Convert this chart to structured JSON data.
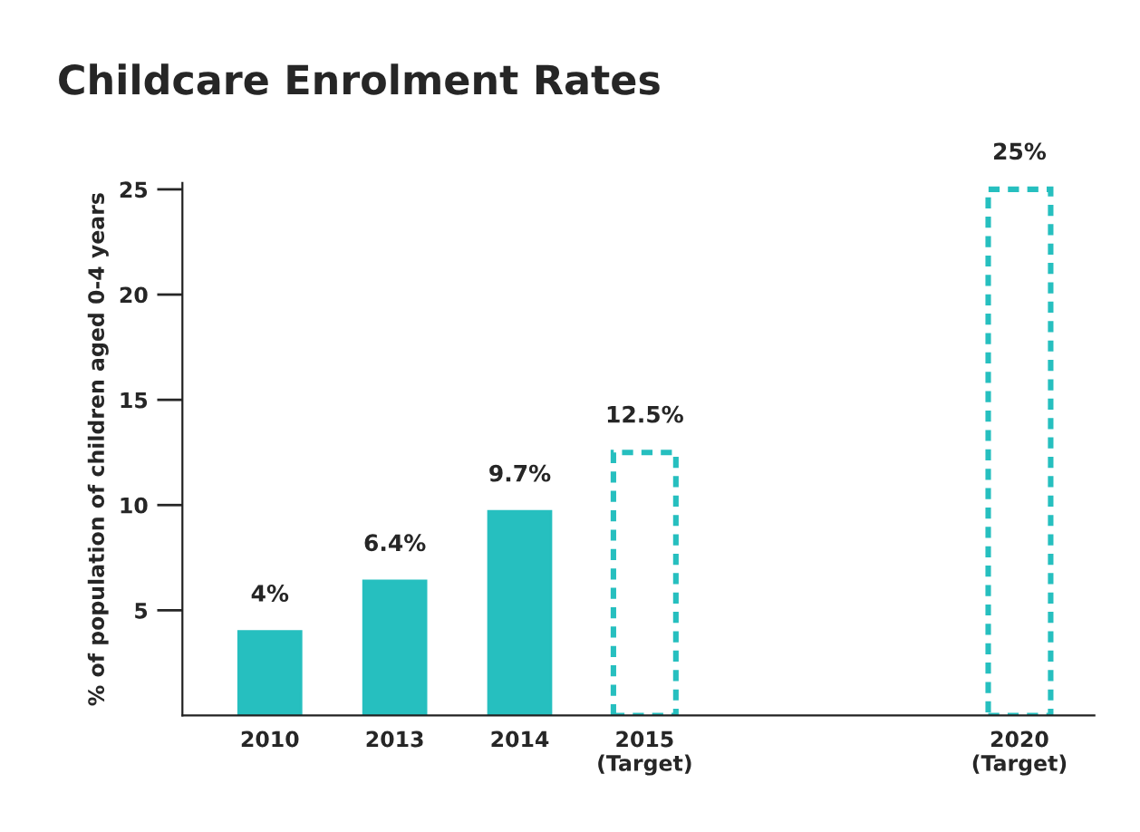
{
  "chart_data": {
    "type": "bar",
    "title": "Childcare Enrolment Rates",
    "ylabel": "% of population of children aged 0-4 years",
    "categories": [
      "2010",
      "2013",
      "2014",
      "2015\n(Target)",
      null,
      null,
      "2020\n(Target)"
    ],
    "series": [
      {
        "color": "#26bfbf",
        "line_style": "solid",
        "values": [
          4,
          6.4,
          9.7,
          null,
          null,
          null,
          null
        ],
        "value_labels": [
          "4%",
          "6.4%",
          "9.7%",
          null,
          null,
          null,
          null
        ]
      },
      {
        "color": "#26bfbf",
        "line_style": "dashed",
        "values": [
          null,
          null,
          null,
          12.5,
          null,
          null,
          25
        ],
        "value_labels": [
          null,
          null,
          null,
          "12.5%",
          null,
          null,
          "25%"
        ]
      }
    ],
    "ylim": [
      0,
      25.3
    ],
    "yticks": [
      5,
      10,
      15,
      20,
      25
    ],
    "grid": false,
    "legend": false
  }
}
